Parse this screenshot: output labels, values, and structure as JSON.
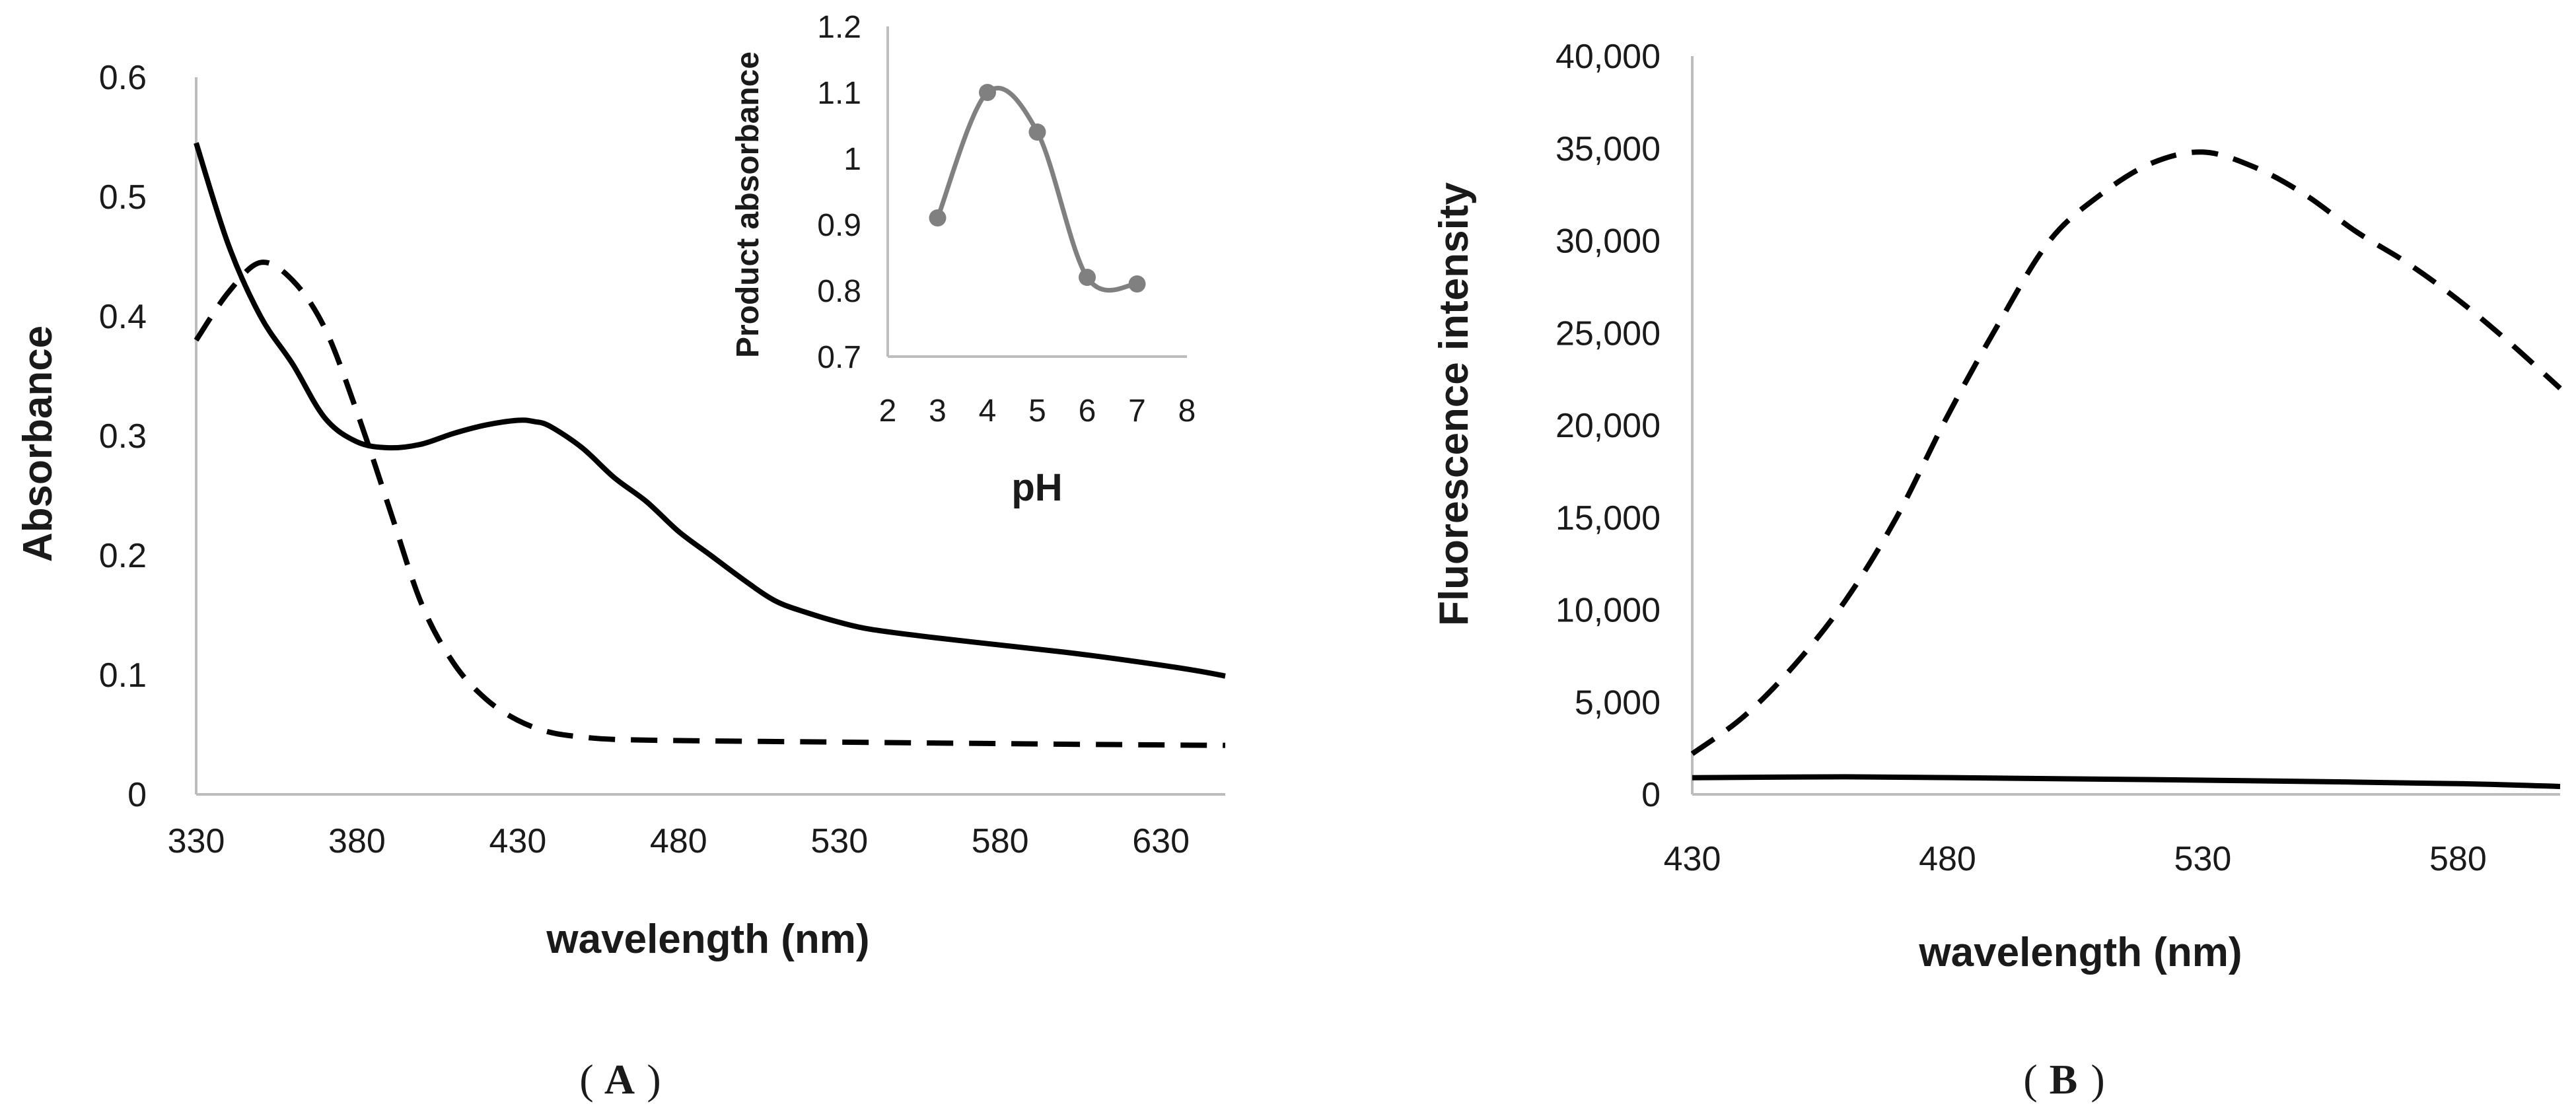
{
  "chart_data": [
    {
      "panel": "A",
      "type": "line",
      "panel_label": "A",
      "xlabel": "wavelength (nm)",
      "ylabel": "Absorbance",
      "xlim": [
        330,
        650
      ],
      "ylim": [
        0,
        0.6
      ],
      "xticks": [
        "330",
        "380",
        "430",
        "480",
        "530",
        "580",
        "630"
      ],
      "yticks": [
        "0",
        "0.1",
        "0.2",
        "0.3",
        "0.4",
        "0.5",
        "0.6"
      ],
      "grid": false,
      "series": [
        {
          "name": "solid",
          "style": "solid",
          "color": "#000000",
          "x": [
            330,
            340,
            350,
            360,
            370,
            380,
            390,
            400,
            410,
            420,
            430,
            435,
            440,
            450,
            460,
            470,
            480,
            490,
            500,
            510,
            520,
            530,
            540,
            560,
            580,
            600,
            620,
            640,
            650
          ],
          "y": [
            0.545,
            0.46,
            0.4,
            0.36,
            0.315,
            0.295,
            0.29,
            0.293,
            0.302,
            0.309,
            0.313,
            0.312,
            0.308,
            0.29,
            0.265,
            0.245,
            0.22,
            0.2,
            0.18,
            0.162,
            0.152,
            0.144,
            0.138,
            0.131,
            0.125,
            0.119,
            0.112,
            0.104,
            0.099
          ]
        },
        {
          "name": "dashed",
          "style": "dashed",
          "color": "#000000",
          "x": [
            330,
            340,
            350,
            360,
            370,
            380,
            390,
            400,
            410,
            420,
            430,
            440,
            450,
            460,
            480,
            520,
            560,
            600,
            650
          ],
          "y": [
            0.38,
            0.42,
            0.445,
            0.43,
            0.39,
            0.32,
            0.24,
            0.16,
            0.11,
            0.08,
            0.062,
            0.052,
            0.048,
            0.046,
            0.045,
            0.044,
            0.043,
            0.042,
            0.041
          ]
        }
      ],
      "inset": {
        "type": "line",
        "xlabel": "pH",
        "ylabel": "Product absorbance",
        "xlim": [
          2,
          8
        ],
        "ylim": [
          0.7,
          1.2
        ],
        "xticks": [
          "2",
          "3",
          "4",
          "5",
          "6",
          "7",
          "8"
        ],
        "yticks": [
          "0.7",
          "0.8",
          "0.9",
          "1",
          "1.1",
          "1.2"
        ],
        "color": "#808080",
        "x": [
          3,
          4,
          5,
          6,
          7
        ],
        "y": [
          0.91,
          1.1,
          1.04,
          0.82,
          0.81
        ]
      }
    },
    {
      "panel": "B",
      "type": "line",
      "panel_label": "B",
      "xlabel": "wavelength (nm)",
      "ylabel": "Fluorescence intensity",
      "xlim": [
        430,
        600
      ],
      "ylim": [
        0,
        40000
      ],
      "xticks": [
        "430",
        "480",
        "530",
        "580"
      ],
      "yticks": [
        "0",
        "5,000",
        "10,000",
        "15,000",
        "20,000",
        "25,000",
        "30,000",
        "35,000",
        "40,000"
      ],
      "grid": false,
      "series": [
        {
          "name": "dashed",
          "style": "dashed",
          "color": "#000000",
          "x": [
            430,
            440,
            450,
            460,
            470,
            480,
            490,
            500,
            510,
            520,
            530,
            540,
            550,
            560,
            570,
            580,
            590,
            600
          ],
          "y": [
            2200,
            4200,
            7000,
            10500,
            15000,
            20500,
            25500,
            30000,
            32500,
            34200,
            34800,
            34000,
            32500,
            30500,
            28800,
            26800,
            24500,
            22000
          ]
        },
        {
          "name": "solid",
          "style": "solid",
          "color": "#000000",
          "x": [
            430,
            460,
            490,
            520,
            550,
            580,
            600
          ],
          "y": [
            900,
            950,
            880,
            800,
            700,
            580,
            430
          ]
        }
      ]
    }
  ]
}
